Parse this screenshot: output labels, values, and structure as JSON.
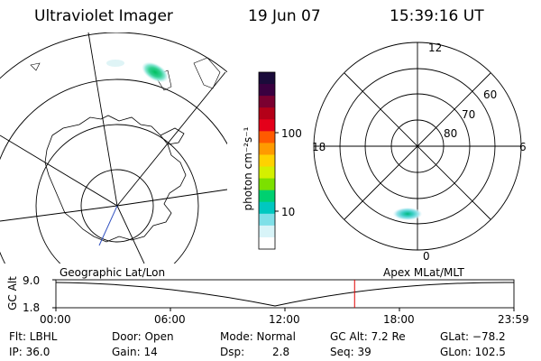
{
  "header": {
    "title": "Ultraviolet Imager",
    "date": "19 Jun 07",
    "time": "15:39:16 UT"
  },
  "colorbar": {
    "unit_label": "photon cm⁻²s⁻¹",
    "ticks": [
      "100",
      "10"
    ],
    "colors": [
      "#1a0b3a",
      "#3a0040",
      "#7a0030",
      "#b40018",
      "#e4001a",
      "#ff5a00",
      "#ff9a00",
      "#ffd200",
      "#d4f000",
      "#7ce000",
      "#00d070",
      "#00c8c0",
      "#7fe0e8",
      "#d8f4f8",
      "#ffffff"
    ]
  },
  "polar_plot": {
    "mlt_labels": [
      "12",
      "18",
      "6",
      "0"
    ],
    "lat_labels": [
      "60",
      "70",
      "80"
    ]
  },
  "map_labels": {
    "left": "Geographic Lat/Lon",
    "right": "Apex MLat/MLT"
  },
  "altitude_panel": {
    "axis_label": "GC Alt",
    "y_ticks": [
      "9.0",
      "1.8"
    ],
    "x_ticks": [
      "00:00",
      "06:00",
      "12:00",
      "18:00",
      "23:59"
    ],
    "current_marker_hours": 15.65,
    "marker_color": "#e00000"
  },
  "status": {
    "flt": "Flt: LBHL",
    "ip": "IP: 36.0",
    "door": "Door: Open",
    "gain": "Gain: 14",
    "mode": "Mode: Normal",
    "dsp_label": "Dsp:",
    "dsp_value": "2.8",
    "gc_alt": "GC Alt: 7.2 Re",
    "seq": "Seq: 39",
    "glat": "GLat: −78.2",
    "glon": "GLon: 102.5"
  }
}
